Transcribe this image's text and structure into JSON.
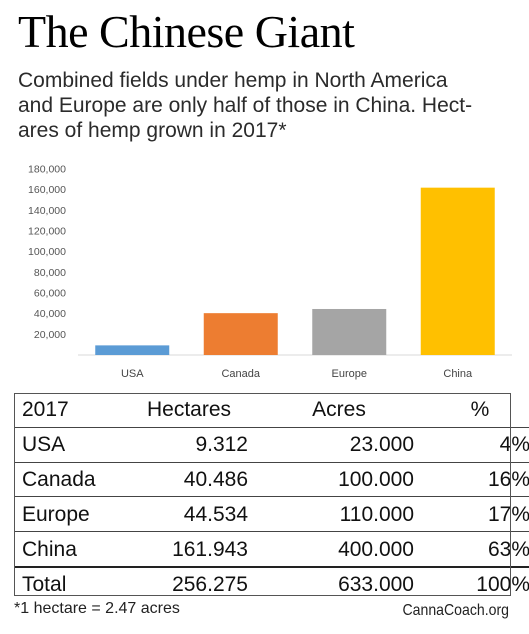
{
  "title": "The Chinese Giant",
  "subtitle": [
    "Combined fields under hemp in North America",
    "and Europe are only half of those in China. Hect-",
    "ares of hemp grown in 2017*"
  ],
  "chart_data": {
    "type": "bar",
    "categories": [
      "USA",
      "Canada",
      "Europe",
      "China"
    ],
    "values": [
      9312,
      40486,
      44534,
      161943
    ],
    "colors": [
      "#5b9bd5",
      "#ed7d31",
      "#a5a5a5",
      "#ffc000"
    ],
    "ylim": [
      0,
      180000
    ],
    "yticks": [
      {
        "value": 20000,
        "label": "20,000"
      },
      {
        "value": 40000,
        "label": "40,000"
      },
      {
        "value": 60000,
        "label": "60,000"
      },
      {
        "value": 80000,
        "label": "80,000"
      },
      {
        "value": 100000,
        "label": "100,000"
      },
      {
        "value": 120000,
        "label": "120,000"
      },
      {
        "value": 140000,
        "label": "140,000"
      },
      {
        "value": 160000,
        "label": "160,000"
      },
      {
        "value": 180000,
        "label": "180,000"
      }
    ],
    "grid": false,
    "legend": "none"
  },
  "table": {
    "header": [
      "2017",
      "Hectares",
      "Acres",
      "%"
    ],
    "rows": [
      [
        "USA",
        "9.312",
        "23.000",
        "4%"
      ],
      [
        "Canada",
        "40.486",
        "100.000",
        "16%"
      ],
      [
        "Europe",
        "44.534",
        "110.000",
        "17%"
      ],
      [
        "China",
        "161.943",
        "400.000",
        "63%"
      ]
    ],
    "total": [
      "Total",
      "256.275",
      "633.000",
      "100%"
    ]
  },
  "footnote": "*1 hectare = 2.47 acres",
  "credit": "CannaCoach.org"
}
